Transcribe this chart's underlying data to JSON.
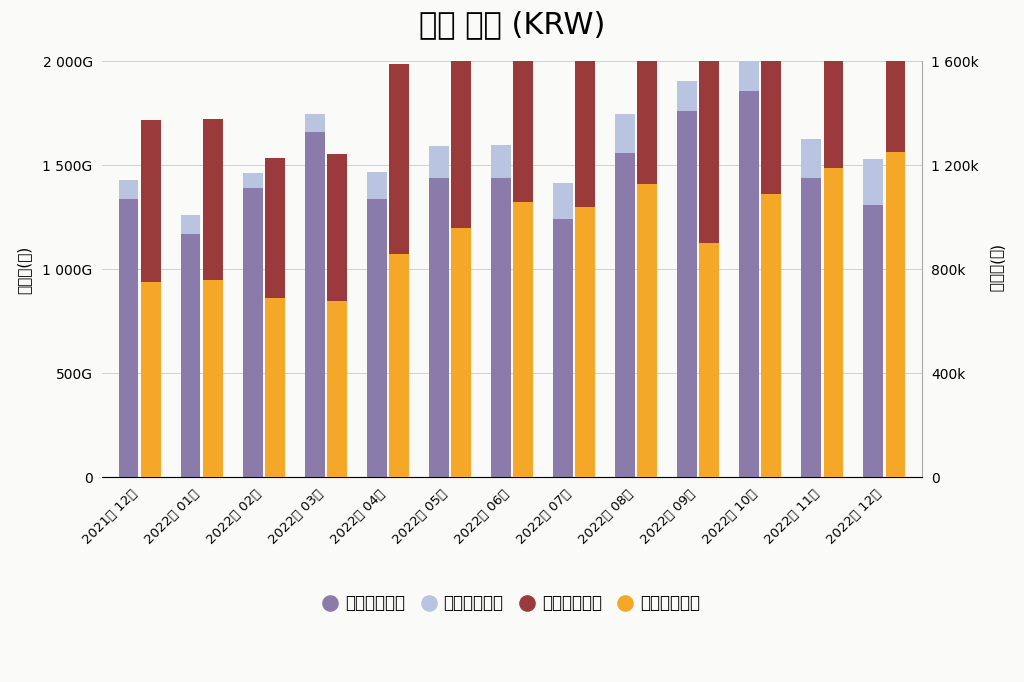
{
  "title": "총괄 현황 (KRW)",
  "categories": [
    "2021년 12월",
    "2022년 01월",
    "2022년 02월",
    "2022년 03월",
    "2022년 04월",
    "2022년 05월",
    "2022년 06월",
    "2022년 07월",
    "2022년 08월",
    "2022년 09월",
    "2022년 10월",
    "2022년 11월",
    "2022년 12월"
  ],
  "foreigner_sales": [
    1340,
    1170,
    1390,
    1660,
    1340,
    1440,
    1440,
    1240,
    1560,
    1760,
    1860,
    1440,
    1310
  ],
  "domestic_sales": [
    90,
    90,
    75,
    85,
    130,
    155,
    160,
    175,
    185,
    145,
    185,
    185,
    220
  ],
  "foreigner_persons": [
    625,
    620,
    540,
    565,
    730,
    840,
    915,
    930,
    990,
    975,
    1035,
    920,
    1215
  ],
  "domestic_persons": [
    750,
    760,
    690,
    680,
    860,
    960,
    1060,
    1040,
    1130,
    900,
    1090,
    1190,
    1250
  ],
  "left_ylim": [
    0,
    2000
  ],
  "right_ylim": [
    0,
    1600
  ],
  "left_yticks": [
    0,
    500,
    1000,
    1500,
    2000
  ],
  "right_yticks": [
    0,
    400,
    800,
    1200,
    1600
  ],
  "left_ylabel": "매출액(원)",
  "right_ylabel": "(명)인원수",
  "color_foreigner_sales": "#8B7BAA",
  "color_domestic_sales": "#B8C4E0",
  "color_foreigner_persons": "#9B3A3A",
  "color_domestic_persons": "#F5A828",
  "background_color": "#FAFAF8",
  "title_fontsize": 22,
  "legend_labels": [
    "외국인매출액",
    "내국인매출액",
    "외국인인원수",
    "내국인인원수"
  ],
  "bar_width": 0.32,
  "bar_gap": 0.04
}
